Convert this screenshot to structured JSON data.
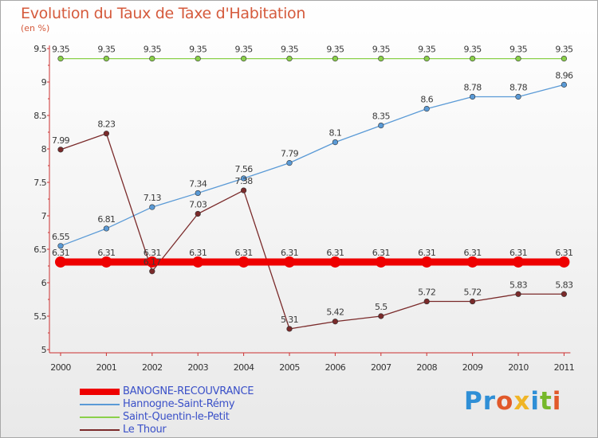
{
  "title": "Evolution du Taux de Taxe d'Habitation",
  "subtitle": "(en %)",
  "logo": "Proxiti",
  "chart_data": {
    "type": "line",
    "title": "Evolution du Taux de Taxe d'Habitation",
    "ylabel": "(en %)",
    "xlabel": "",
    "categories": [
      "2000",
      "2001",
      "2002",
      "2003",
      "2004",
      "2005",
      "2006",
      "2007",
      "2008",
      "2009",
      "2010",
      "2011"
    ],
    "ylim": [
      5,
      9.5
    ],
    "yticks": [
      5,
      5.5,
      6,
      6.5,
      7,
      7.5,
      8,
      8.5,
      9,
      9.5
    ],
    "grid": false,
    "legend_position": "bottom-left",
    "series": [
      {
        "name": "BANOGNE-RECOUVRANCE",
        "color": "#ee0000",
        "values": [
          6.31,
          6.31,
          6.31,
          6.31,
          6.31,
          6.31,
          6.31,
          6.31,
          6.31,
          6.31,
          6.31,
          6.31
        ]
      },
      {
        "name": "Hannogne-Saint-Rémy",
        "color": "#5a9ad6",
        "values": [
          6.55,
          6.81,
          7.13,
          7.34,
          7.56,
          7.79,
          8.1,
          8.35,
          8.6,
          8.78,
          8.78,
          8.96
        ]
      },
      {
        "name": "Saint-Quentin-le-Petit",
        "color": "#8ad04a",
        "values": [
          9.35,
          9.35,
          9.35,
          9.35,
          9.35,
          9.35,
          9.35,
          9.35,
          9.35,
          9.35,
          9.35,
          9.35
        ]
      },
      {
        "name": "Le Thour",
        "color": "#7a2a2a",
        "values": [
          7.99,
          8.23,
          6.17,
          7.03,
          7.38,
          5.31,
          5.42,
          5.5,
          5.72,
          5.72,
          5.83,
          5.83
        ]
      }
    ]
  }
}
